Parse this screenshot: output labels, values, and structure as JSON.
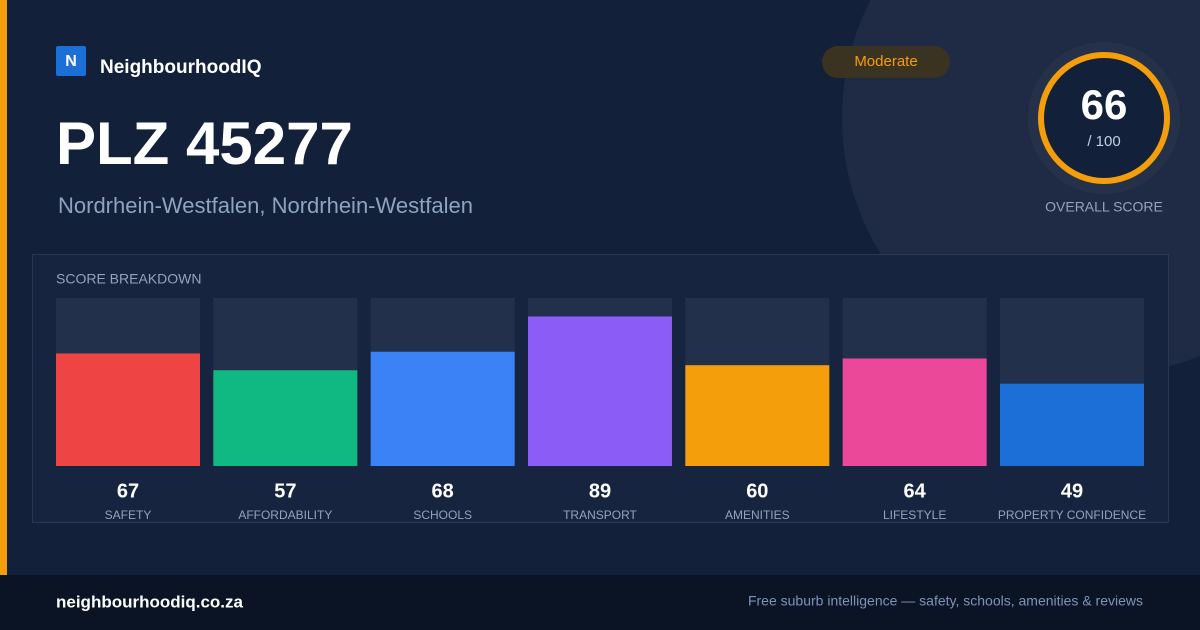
{
  "header": {
    "brand_initial": "N",
    "brand": "NeighbourhoodIQ",
    "title": "PLZ 45277",
    "subtitle": "Nordrhein-Westfalen, Nordrhein-Westfalen",
    "badge": "Moderate"
  },
  "score": {
    "value": 66,
    "max_label": "/ 100",
    "label": "OVERALL SCORE"
  },
  "chart_data": {
    "type": "bar",
    "title": "SCORE BREAKDOWN",
    "categories": [
      "SAFETY",
      "AFFORDABILITY",
      "SCHOOLS",
      "TRANSPORT",
      "AMENITIES",
      "LIFESTYLE",
      "PROPERTY CONFIDENCE"
    ],
    "values": [
      67,
      57,
      68,
      89,
      60,
      64,
      49
    ],
    "colors": [
      "#ef4444",
      "#10b981",
      "#3b82f6",
      "#8b5cf6",
      "#f59e0b",
      "#ec4899",
      "#1d6fd8"
    ],
    "ylim": [
      0,
      100
    ]
  },
  "footer": {
    "site": "neighbourhoodiq.co.za",
    "tagline": "Free suburb intelligence — safety, schools, amenities & reviews"
  }
}
